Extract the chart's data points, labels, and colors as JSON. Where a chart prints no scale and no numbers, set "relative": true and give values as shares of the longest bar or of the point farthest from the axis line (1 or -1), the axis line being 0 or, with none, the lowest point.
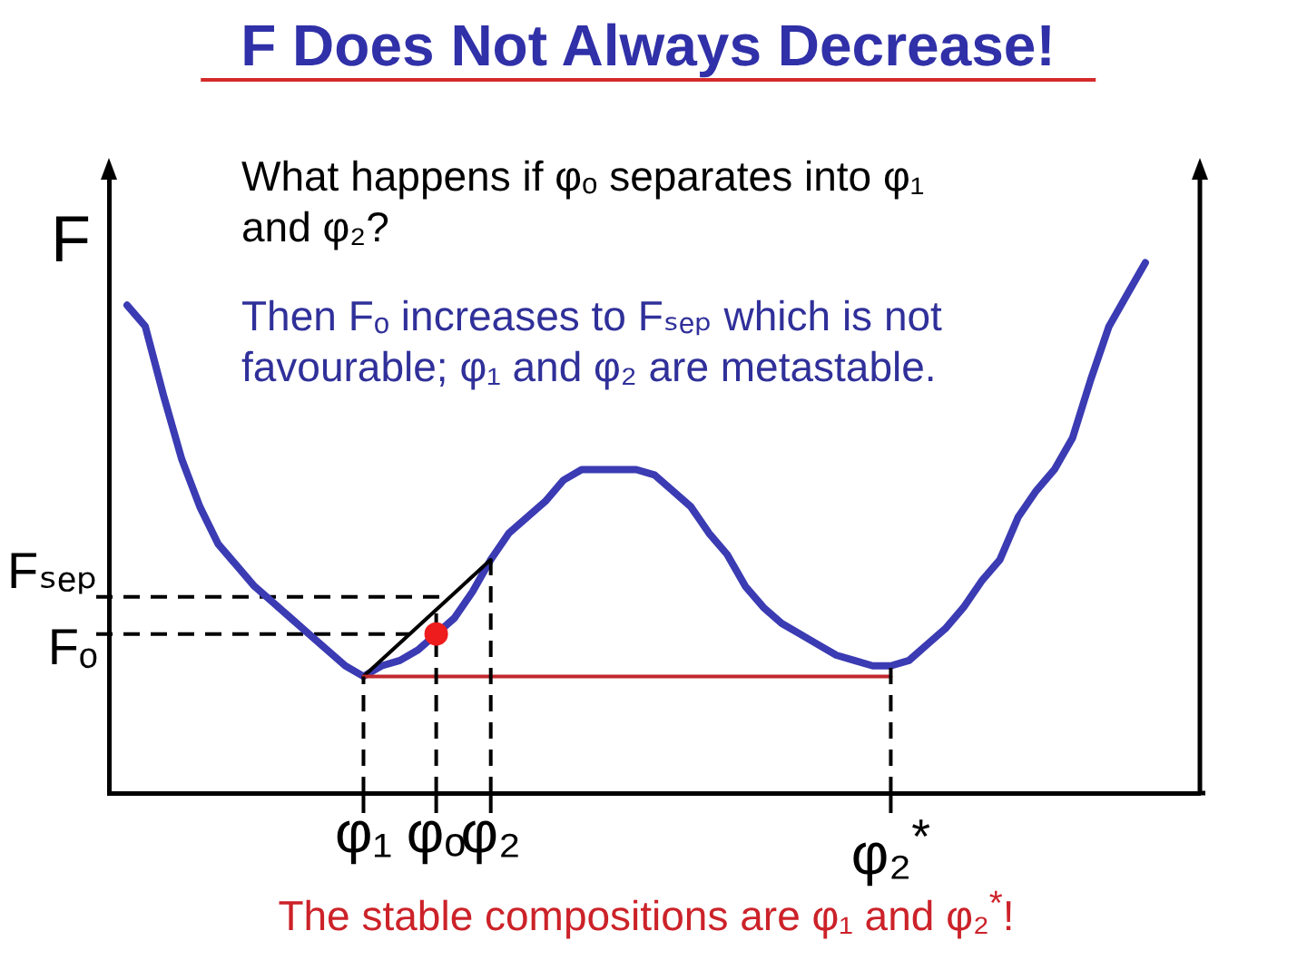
{
  "chart_data": {
    "type": "line",
    "title": "F Does Not Always Decrease!",
    "ylabel": "F",
    "relative": true,
    "tick_labels": "x",
    "marker": "none",
    "line_style": "solid",
    "annotations": [
      "What happens if φₒ separates into φ₁ and φ₂?",
      "Then Fₒ increases to Fₛₑₚ which is not favourable;  φ₁ and φ₂ are metastable.",
      "The stable compositions are φ₁ and φ₂$^{*}$!"
    ],
    "categories": [
      null,
      null,
      null,
      null,
      null,
      null,
      null,
      null,
      null,
      null,
      null,
      null,
      null,
      null,
      "φ₁",
      null,
      null,
      null,
      "φₒ",
      null,
      null,
      "φ₂",
      null,
      null,
      null,
      null,
      null,
      null,
      null,
      null,
      null,
      null,
      null,
      null,
      null,
      null,
      null,
      null,
      null,
      null,
      null,
      null,
      null,
      "φ₂$^{*}$",
      null,
      null,
      null,
      null,
      null,
      null,
      null,
      null,
      null,
      null,
      null,
      null,
      null,
      null,
      null,
      null,
      null
    ],
    "series": [
      {
        "color": "#3b3bb3",
        "values": [
          null,
          0.92,
          0.88,
          0.75,
          0.63,
          0.54,
          0.47,
          0.43,
          0.39,
          0.36,
          0.33,
          0.3,
          0.27,
          0.24,
          0.22,
          0.24,
          0.25,
          0.27,
          0.3,
          0.33,
          0.38,
          0.44,
          0.49,
          0.52,
          0.55,
          0.59,
          0.61,
          0.61,
          0.61,
          0.61,
          0.6,
          0.57,
          0.54,
          0.49,
          0.45,
          0.39,
          0.35,
          0.32,
          0.3,
          0.28,
          0.26,
          0.25,
          0.24,
          0.24,
          0.25,
          0.28,
          0.31,
          0.35,
          0.4,
          0.44,
          0.52,
          0.57,
          0.61,
          0.67,
          0.78,
          0.88,
          0.94,
          1,
          null,
          null,
          null
        ]
      },
      {
        "type": "line",
        "color": "#000000",
        "x": [
          "φ₁",
          "φ₂"
        ],
        "values": [
          0.22,
          0.44
        ]
      },
      {
        "type": "line",
        "color": "#c0282d",
        "x": [
          "φ₁",
          "φ₂$^{*}$"
        ],
        "values": [
          0.22,
          0.22
        ]
      },
      {
        "type": "line",
        "color": "#000000",
        "line_style": "dashed",
        "x": [
          "φ₁",
          "φ₁"
        ],
        "values": [
          0,
          0.22
        ]
      },
      {
        "type": "line",
        "color": "#000000",
        "line_style": "dashed",
        "x": [
          "φₒ",
          "φₒ"
        ],
        "values": [
          0,
          0.35
        ]
      },
      {
        "type": "line",
        "color": "#000000",
        "line_style": "dashed",
        "x": [
          "φ₂",
          "φ₂"
        ],
        "values": [
          0,
          0.44
        ]
      },
      {
        "type": "line",
        "color": "#000000",
        "line_style": "dashed",
        "x": [
          "φ₂$^{*}$",
          "φ₂$^{*}$"
        ],
        "values": [
          0,
          0.24
        ]
      },
      {
        "type": "scatter",
        "color": "#ee1c1c",
        "marker": "circle",
        "x": [
          "φₒ"
        ],
        "values": [
          0.3
        ]
      }
    ],
    "ref_lines": [
      {
        "axis": "y",
        "value": 0.37,
        "label": "Fₛₑₚ",
        "color": "#000000",
        "line_style": "dashed"
      },
      {
        "axis": "y",
        "value": 0.3,
        "label": "Fₒ",
        "color": "#000000",
        "line_style": "dashed"
      }
    ]
  }
}
